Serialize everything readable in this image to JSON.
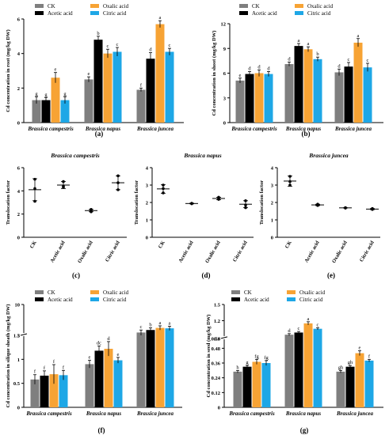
{
  "colors": {
    "CK": "#7f7f7f",
    "Acetic acid": "#000000",
    "Oxalic acid": "#f7a334",
    "Citric acid": "#1ea7e6"
  },
  "chart_data": [
    {
      "id": "a",
      "type": "bar",
      "panel_label": "(a)",
      "ylabel": "Cd concentration in root (mg/kg DW)",
      "ylim": [
        0,
        6
      ],
      "yticks": [
        0,
        2,
        4,
        6
      ],
      "categories": [
        "Brassica campestris",
        "Brassica napus",
        "Brassica juncea"
      ],
      "legend": [
        "CK",
        "Acetic acid",
        "Oxalic acid",
        "Citric acid"
      ],
      "series": [
        {
          "name": "CK",
          "values": [
            1.3,
            2.5,
            1.9
          ],
          "errors": [
            0.2,
            0.15,
            0.1
          ],
          "letters": [
            "g",
            "e",
            "f"
          ]
        },
        {
          "name": "Acetic acid",
          "values": [
            1.3,
            4.8,
            3.7
          ],
          "errors": [
            0.15,
            0.2,
            0.35
          ],
          "letters": [
            "g",
            "b",
            "d"
          ]
        },
        {
          "name": "Oxalic acid",
          "values": [
            2.6,
            4.0,
            5.7
          ],
          "errors": [
            0.3,
            0.25,
            0.2
          ],
          "letters": [
            "e",
            "c",
            "a"
          ]
        },
        {
          "name": "Citric acid",
          "values": [
            1.3,
            4.1,
            4.1
          ],
          "errors": [
            0.2,
            0.25,
            0.2
          ],
          "letters": [
            "g",
            "c",
            "c"
          ]
        }
      ]
    },
    {
      "id": "b",
      "type": "bar",
      "panel_label": "(b)",
      "ylabel": "Cd concentration in shoot (mg/kg DW)",
      "ylim": [
        0,
        12
      ],
      "yticks": [
        0,
        3,
        6,
        9,
        12
      ],
      "categories": [
        "Brassica campestris",
        "Brassica napus",
        "Brassica juncea"
      ],
      "legend": [
        "CK",
        "Acetic acid",
        "Oxalic acid",
        "Citric acid"
      ],
      "series": [
        {
          "name": "CK",
          "values": [
            5.1,
            7.1,
            6.1
          ],
          "errors": [
            0.3,
            0.25,
            0.4
          ],
          "letters": [
            "e",
            "d",
            "d"
          ]
        },
        {
          "name": "Acetic acid",
          "values": [
            5.9,
            9.3,
            6.8
          ],
          "errors": [
            0.3,
            0.3,
            0.5
          ],
          "letters": [
            "d",
            "a",
            "c"
          ]
        },
        {
          "name": "Oxalic acid",
          "values": [
            6.0,
            8.9,
            9.7
          ],
          "errors": [
            0.4,
            0.3,
            0.5
          ],
          "letters": [
            "d",
            "a",
            "a"
          ]
        },
        {
          "name": "Citric acid",
          "values": [
            5.9,
            7.7,
            6.7
          ],
          "errors": [
            0.3,
            0.25,
            0.5
          ],
          "letters": [
            "d",
            "b",
            "c"
          ]
        }
      ]
    },
    {
      "id": "c",
      "type": "scatter",
      "panel_label": "(c)",
      "title": "Brassica campestris",
      "ylabel": "Translocation factor",
      "ylim": [
        0,
        6
      ],
      "yticks": [
        0,
        2,
        4,
        6
      ],
      "categories": [
        "CK",
        "Acetic acid",
        "Oxalic acid",
        "Citric acid"
      ],
      "points": [
        [
          5.0,
          4.2,
          3.1
        ],
        [
          4.8,
          4.4,
          4.3
        ],
        [
          2.4,
          2.3,
          2.2
        ],
        [
          5.3,
          4.7,
          4.1
        ]
      ],
      "means": [
        4.1,
        4.5,
        2.3,
        4.7
      ],
      "errors": [
        0.95,
        0.3,
        0.1,
        0.6
      ]
    },
    {
      "id": "d",
      "type": "scatter",
      "panel_label": "(d)",
      "title": "Brassica napus",
      "ylabel": "Translocation factor",
      "ylim": [
        0,
        4
      ],
      "yticks": [
        0,
        1,
        2,
        3,
        4
      ],
      "categories": [
        "CK",
        "Acetic acid",
        "Oxalic acid",
        "Citric acid"
      ],
      "points": [
        [
          3.0,
          2.8,
          2.55
        ],
        [
          1.95,
          1.93,
          1.94
        ],
        [
          2.3,
          2.22,
          2.18
        ],
        [
          2.1,
          1.85,
          1.7
        ]
      ],
      "means": [
        2.78,
        1.94,
        2.23,
        1.9
      ],
      "errors": [
        0.25,
        0.02,
        0.07,
        0.2
      ]
    },
    {
      "id": "e",
      "type": "scatter",
      "panel_label": "(e)",
      "title": "Brassica juncea",
      "ylabel": "Translocation factor",
      "ylim": [
        0,
        4
      ],
      "yticks": [
        0,
        1,
        2,
        3,
        4
      ],
      "categories": [
        "CK",
        "Acetic acid",
        "Oxalic acid",
        "Citric acid"
      ],
      "points": [
        [
          3.5,
          3.2,
          3.0
        ],
        [
          1.9,
          1.83,
          1.85
        ],
        [
          1.7,
          1.69,
          1.68
        ],
        [
          1.65,
          1.6,
          1.62
        ]
      ],
      "means": [
        3.23,
        1.86,
        1.69,
        1.62
      ],
      "errors": [
        0.3,
        0.04,
        0.01,
        0.03
      ]
    },
    {
      "id": "f",
      "type": "bar",
      "panel_label": "(f)",
      "ylabel": "Cd concentration in silique sheath (mg/kg DW)",
      "axis_break": true,
      "ylim": [
        0,
        10
      ],
      "yticks": [
        0,
        0.5,
        1.0,
        1.5,
        3,
        10
      ],
      "categories": [
        "Brassica campestris",
        "Brassica napus",
        "Brassica juncea"
      ],
      "legend": [
        "CK",
        "Acetic acid",
        "Oxalic acid",
        "Citric acid"
      ],
      "series": [
        {
          "name": "CK",
          "values": [
            0.58,
            0.9,
            3.3
          ],
          "errors": [
            0.1,
            0.08,
            0.6
          ],
          "letters": [
            "f",
            "e",
            "c"
          ]
        },
        {
          "name": "Acetic acid",
          "values": [
            0.66,
            1.18,
            3.9
          ],
          "errors": [
            0.1,
            0.1,
            0.5
          ],
          "letters": [
            "f",
            "dc",
            "b"
          ]
        },
        {
          "name": "Oxalic acid",
          "values": [
            0.69,
            1.22,
            4.4
          ],
          "errors": [
            0.2,
            0.15,
            0.5
          ],
          "letters": [
            "f",
            "d",
            "a"
          ]
        },
        {
          "name": "Citric acid",
          "values": [
            0.67,
            0.98,
            4.3
          ],
          "errors": [
            0.1,
            0.06,
            0.5
          ],
          "letters": [
            "f",
            "e",
            "a"
          ]
        }
      ]
    },
    {
      "id": "g",
      "type": "bar",
      "panel_label": "(g)",
      "ylabel": "Cd concentration in seed (mg/kg DW)",
      "axis_break": true,
      "ylim": [
        0,
        1.5
      ],
      "yticks": [
        0,
        0.12,
        0.24,
        0.36,
        0.48,
        0.56,
        0.9,
        1.2,
        1.5
      ],
      "categories": [
        "Brassica campestris",
        "Brassica napus",
        "Brassica juncea"
      ],
      "legend": [
        "CK",
        "Acetic acid",
        "Oxalic acid",
        "Citric acid"
      ],
      "series": [
        {
          "name": "CK",
          "values": [
            0.29,
            0.94,
            0.29
          ],
          "errors": [
            0.01,
            0.02,
            0.01
          ],
          "letters": [
            "h",
            "d",
            "gh"
          ]
        },
        {
          "name": "Acetic acid",
          "values": [
            0.33,
            0.98,
            0.33
          ],
          "errors": [
            0.01,
            0.02,
            0.01
          ],
          "letters": [
            "g",
            "c",
            "gh"
          ]
        },
        {
          "name": "Oxalic acid",
          "values": [
            0.37,
            1.15,
            0.44
          ],
          "errors": [
            0.02,
            0.03,
            0.02
          ],
          "letters": [
            "fg",
            "a",
            "e"
          ]
        },
        {
          "name": "Citric acid",
          "values": [
            0.36,
            1.05,
            0.38
          ],
          "errors": [
            0.02,
            0.02,
            0.01
          ],
          "letters": [
            "fg",
            "c",
            "f"
          ]
        }
      ]
    }
  ]
}
